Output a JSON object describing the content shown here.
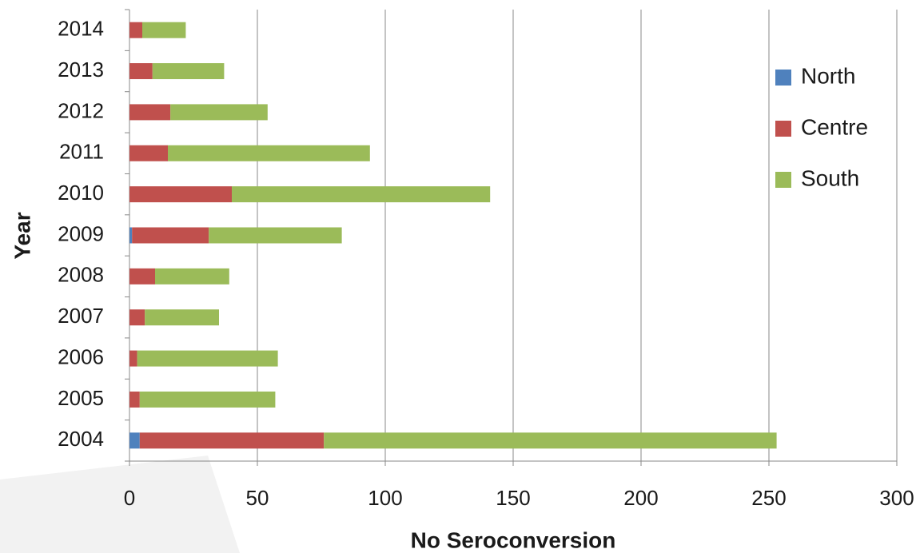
{
  "chart_data": {
    "type": "stacked-barh",
    "x_label": "No Seroconversion",
    "y_label": "Year",
    "categories": [
      "2004",
      "2005",
      "2006",
      "2007",
      "2008",
      "2009",
      "2010",
      "2011",
      "2012",
      "2013",
      "2014"
    ],
    "series": [
      {
        "name": "North",
        "color": "#4f81bd",
        "values": [
          4,
          0,
          0,
          0,
          0,
          1,
          0,
          0,
          0,
          0,
          0
        ]
      },
      {
        "name": "Centre",
        "color": "#c0504d",
        "values": [
          72,
          4,
          3,
          6,
          10,
          30,
          40,
          15,
          16,
          9,
          5
        ]
      },
      {
        "name": "South",
        "color": "#9bbb59",
        "values": [
          177,
          53,
          55,
          29,
          29,
          52,
          101,
          79,
          38,
          28,
          17
        ]
      }
    ],
    "xlim": [
      0,
      300
    ],
    "xticks": [
      0,
      50,
      100,
      150,
      200,
      250,
      300
    ],
    "grid": true,
    "legend": "right"
  }
}
